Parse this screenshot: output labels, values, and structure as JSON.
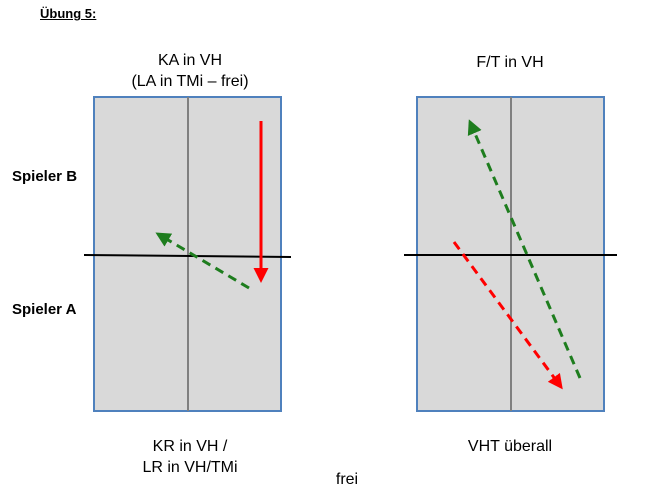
{
  "title": "Übung 5:",
  "players": {
    "b": "Spieler B",
    "a": "Spieler A"
  },
  "left_drill": {
    "top_line1": "KA in VH",
    "top_line2": "(LA in TMi – frei)",
    "bottom_line1": "KR in VH /",
    "bottom_line2": "LR in VH/TMi"
  },
  "right_drill": {
    "top_line1": "F/T in VH",
    "bottom_line1": "VHT überall"
  },
  "footer": "frei",
  "colors": {
    "table_fill": "#d9d9d9",
    "table_border": "#4f81bd",
    "center_line": "#808080",
    "net": "#000000",
    "red": "#ff0000",
    "green": "#1e7d1e"
  }
}
